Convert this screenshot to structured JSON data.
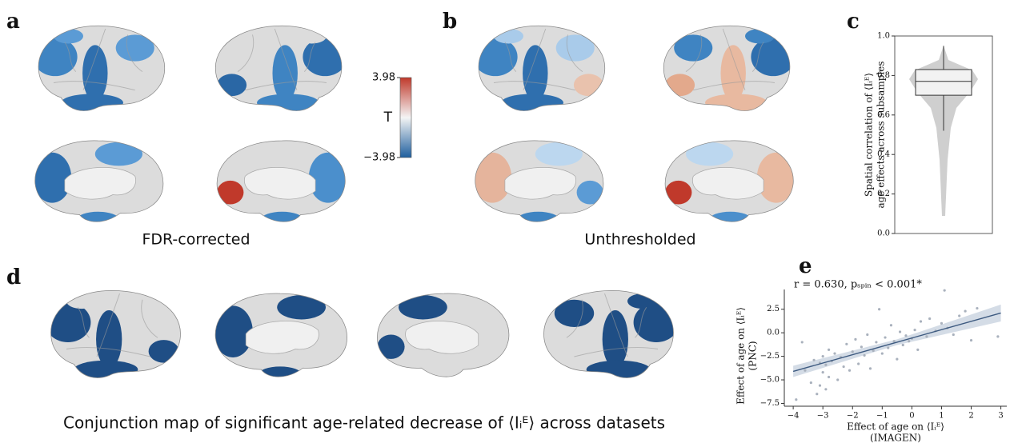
{
  "panel_labels": [
    "a",
    "b",
    "c",
    "d",
    "e"
  ],
  "captions": [
    "FDR-corrected",
    "Unthresholded",
    "Conjunction map of significant age-related decrease of ⟨Iᵢᴱ⟩ across datasets"
  ],
  "colorbar": {
    "label": "T",
    "lim": [
      -3.98,
      3.98
    ],
    "ticks": [
      3.98,
      {
        "value": -3.98,
        "label": "−3.98"
      }
    ],
    "colors": [
      "#1f5f9e",
      "#f4f4f4",
      "#c0392b"
    ]
  },
  "chart_data": [
    {
      "type": "box",
      "ylabel": [
        "Spatial correlation of ⟨Iᵢᴱ⟩",
        "age effects across subsamples"
      ],
      "ylim": [
        0,
        1
      ],
      "yticks": [
        {
          "value": 0,
          "label": "0.0"
        },
        0.2,
        0.4,
        0.6,
        0.8,
        {
          "value": 1,
          "label": "1.0"
        }
      ],
      "box": {
        "whislo": 0.52,
        "q1": 0.7,
        "med": 0.77,
        "q3": 0.83,
        "whishi": 0.95
      },
      "color": "#f2f2f2"
    },
    {
      "type": "scatter",
      "annotation": "r = 0.630, pₛₚᵢₙ < 0.001*",
      "xlabel": [
        "Effect of age on ⟨Iᵢᴱ⟩",
        "(IMAGEN)"
      ],
      "ylabel": [
        "Effect of age on ⟨Iᵢᴱ⟩",
        "(PNC)"
      ],
      "xlim": [
        -4.3,
        3.2
      ],
      "ylim": [
        -7.8,
        4.6
      ],
      "xticks": [
        {
          "value": -4,
          "label": "−4"
        },
        {
          "value": -3,
          "label": "−3"
        },
        {
          "value": -2,
          "label": "−2"
        },
        {
          "value": -1,
          "label": "−1"
        },
        0,
        1,
        2,
        3
      ],
      "yticks": [
        {
          "value": -7.5,
          "label": "−7.5"
        },
        {
          "value": -5,
          "label": "−5.0"
        },
        {
          "value": -2.5,
          "label": "−2.5"
        },
        {
          "value": 0,
          "label": "0.0"
        },
        2.5
      ],
      "color": "#a9b1bd",
      "x": [
        -3.9,
        -3.7,
        -3.6,
        -3.4,
        -3.3,
        -3.2,
        -3.1,
        -3.1,
        -3.0,
        -3.0,
        -2.9,
        -2.9,
        -2.8,
        -2.8,
        -2.7,
        -2.6,
        -2.5,
        -2.4,
        -2.3,
        -2.2,
        -2.1,
        -2.0,
        -1.9,
        -1.8,
        -1.7,
        -1.6,
        -1.5,
        -1.4,
        -1.3,
        -1.2,
        -1.1,
        -1.0,
        -0.9,
        -0.8,
        -0.7,
        -0.6,
        -0.5,
        -0.4,
        -0.3,
        -0.2,
        -0.1,
        0.0,
        0.1,
        0.2,
        0.3,
        0.5,
        0.6,
        0.8,
        1.0,
        1.1,
        1.2,
        1.4,
        1.6,
        1.8,
        2.0,
        2.2,
        2.9
      ],
      "y": [
        -7.1,
        -1.0,
        -4.0,
        -5.3,
        -2.9,
        -6.5,
        -3.2,
        -5.6,
        -2.5,
        -4.2,
        -3.4,
        -6.0,
        -1.8,
        -4.7,
        -3.0,
        -2.2,
        -5.0,
        -2.6,
        -3.6,
        -1.2,
        -4.0,
        -2.0,
        -0.7,
        -3.3,
        -1.5,
        -2.4,
        -0.2,
        -3.8,
        -1.9,
        -1.0,
        2.5,
        -2.2,
        -0.5,
        -1.6,
        0.8,
        -0.9,
        -2.8,
        0.1,
        -1.3,
        -0.3,
        -0.9,
        -0.6,
        0.3,
        -1.8,
        1.2,
        -0.4,
        1.5,
        0.2,
        1.0,
        4.5,
        0.5,
        -0.2,
        1.8,
        2.3,
        -0.8,
        2.6,
        -0.4
      ],
      "fit": {
        "x": [
          -4,
          -0.5,
          3
        ],
        "y": [
          -4.1,
          -1.0,
          2.1
        ],
        "lower": [
          -4.7,
          -1.3,
          1.2
        ],
        "upper": [
          -3.5,
          -0.7,
          3.0
        ],
        "color": "#3d5a80",
        "band_color": "#c9d3e0"
      }
    }
  ]
}
